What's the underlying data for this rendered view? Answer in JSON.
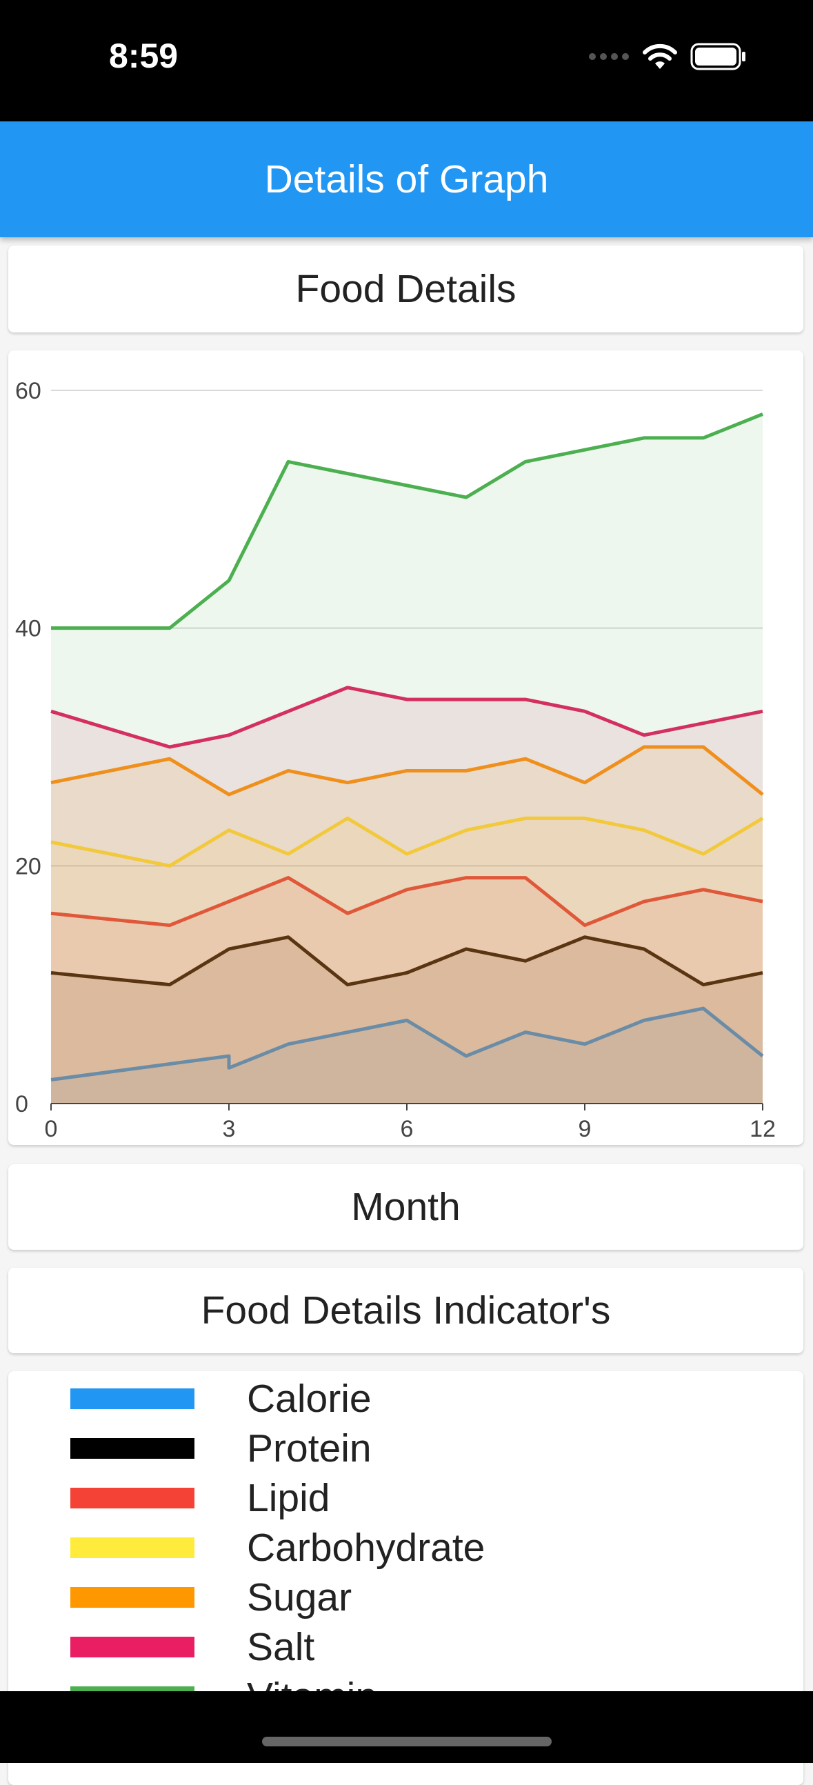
{
  "status_bar": {
    "time": "8:59"
  },
  "app_bar": {
    "title": "Details of Graph"
  },
  "chart_title_card": {
    "label": "Food Details"
  },
  "x_axis_card": {
    "label": "Month"
  },
  "legend_title_card": {
    "label": "Food Details Indicator's"
  },
  "legend": {
    "items": [
      {
        "label": "Calorie",
        "color": "#2196f3"
      },
      {
        "label": "Protein",
        "color": "#000000"
      },
      {
        "label": "Lipid",
        "color": "#f44336"
      },
      {
        "label": "Carbohydrate",
        "color": "#ffeb3b"
      },
      {
        "label": "Sugar",
        "color": "#ff9800"
      },
      {
        "label": "Salt",
        "color": "#e91e63"
      },
      {
        "label": "Vitamin",
        "color": "#4caf50"
      }
    ]
  },
  "chart_data": {
    "type": "area",
    "xlim": [
      0,
      12
    ],
    "ylim": [
      0,
      60
    ],
    "x_ticks": [
      0,
      3,
      6,
      9,
      12
    ],
    "y_ticks": [
      0,
      20,
      40,
      60
    ],
    "grid": true,
    "series": [
      {
        "name": "Vitamin",
        "color": "#4caf50",
        "points": [
          [
            0,
            40
          ],
          [
            2,
            40
          ],
          [
            3,
            44
          ],
          [
            4,
            54
          ],
          [
            5,
            53
          ],
          [
            6,
            52
          ],
          [
            7,
            51
          ],
          [
            8,
            54
          ],
          [
            9,
            55
          ],
          [
            10,
            56
          ],
          [
            11,
            56
          ],
          [
            12,
            58
          ]
        ]
      },
      {
        "name": "Salt",
        "color": "#d32f5f",
        "points": [
          [
            0,
            33
          ],
          [
            2,
            30
          ],
          [
            3,
            31
          ],
          [
            4,
            33
          ],
          [
            5,
            35
          ],
          [
            6,
            34
          ],
          [
            7,
            34
          ],
          [
            8,
            34
          ],
          [
            9,
            33
          ],
          [
            10,
            31
          ],
          [
            11,
            32
          ],
          [
            12,
            33
          ]
        ]
      },
      {
        "name": "Sugar",
        "color": "#ef8f1c",
        "points": [
          [
            0,
            27
          ],
          [
            2,
            29
          ],
          [
            3,
            26
          ],
          [
            4,
            28
          ],
          [
            5,
            27
          ],
          [
            6,
            28
          ],
          [
            7,
            28
          ],
          [
            8,
            29
          ],
          [
            9,
            27
          ],
          [
            10,
            30
          ],
          [
            11,
            30
          ],
          [
            12,
            26
          ]
        ]
      },
      {
        "name": "Carbohydrate",
        "color": "#f2c93c",
        "points": [
          [
            0,
            22
          ],
          [
            2,
            20
          ],
          [
            3,
            23
          ],
          [
            4,
            21
          ],
          [
            5,
            24
          ],
          [
            6,
            21
          ],
          [
            7,
            23
          ],
          [
            8,
            24
          ],
          [
            9,
            24
          ],
          [
            10,
            23
          ],
          [
            11,
            21
          ],
          [
            12,
            24
          ]
        ]
      },
      {
        "name": "Lipid",
        "color": "#e0583a",
        "points": [
          [
            0,
            16
          ],
          [
            2,
            15
          ],
          [
            3,
            17
          ],
          [
            4,
            19
          ],
          [
            5,
            16
          ],
          [
            6,
            18
          ],
          [
            7,
            19
          ],
          [
            8,
            19
          ],
          [
            9,
            15
          ],
          [
            10,
            17
          ],
          [
            11,
            18
          ],
          [
            12,
            17
          ]
        ]
      },
      {
        "name": "Protein",
        "color": "#5a3512",
        "points": [
          [
            0,
            11
          ],
          [
            2,
            10
          ],
          [
            3,
            13
          ],
          [
            4,
            14
          ],
          [
            5,
            10
          ],
          [
            6,
            11
          ],
          [
            7,
            13
          ],
          [
            8,
            12
          ],
          [
            9,
            14
          ],
          [
            10,
            13
          ],
          [
            11,
            10
          ],
          [
            12,
            11
          ]
        ]
      },
      {
        "name": "Calorie",
        "color": "#6a8ca6",
        "points": [
          [
            0,
            2
          ],
          [
            3,
            4
          ],
          [
            3,
            3
          ],
          [
            4,
            5
          ],
          [
            5,
            6
          ],
          [
            6,
            7
          ],
          [
            7,
            4
          ],
          [
            8,
            6
          ],
          [
            9,
            5
          ],
          [
            10,
            7
          ],
          [
            11,
            8
          ],
          [
            12,
            4
          ]
        ]
      }
    ]
  }
}
